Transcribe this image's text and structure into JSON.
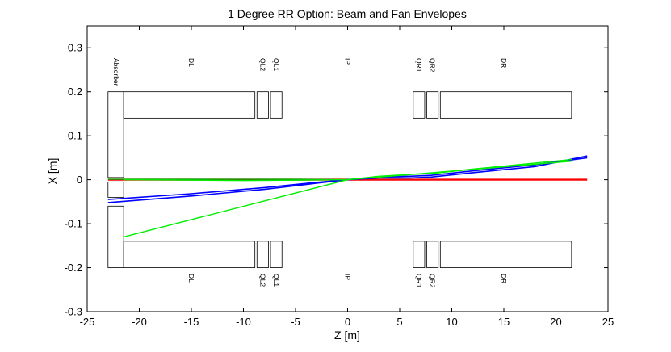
{
  "chart_data": {
    "type": "line",
    "title": "1 Degree RR Option: Beam and Fan Envelopes",
    "xlabel": "Z [m]",
    "ylabel": "X [m]",
    "xlim": [
      -25,
      25
    ],
    "ylim": [
      -0.3,
      0.35
    ],
    "xticks": [
      -25,
      -20,
      -15,
      -10,
      -5,
      0,
      5,
      10,
      15,
      20,
      25
    ],
    "yticks": [
      -0.3,
      -0.2,
      -0.1,
      0,
      0.1,
      0.2,
      0.3
    ],
    "xtick_labels": [
      "-25",
      "-20",
      "-15",
      "-10",
      "-5",
      "0",
      "5",
      "10",
      "15",
      "20",
      "25"
    ],
    "ytick_labels": [
      "-0.3",
      "-0.2",
      "-0.1",
      "0",
      "0.1",
      "0.2",
      "0.3"
    ],
    "grid": false,
    "elements": [
      {
        "label": "Absorber",
        "rects": [
          [
            -23,
            -21.5,
            0.005,
            0.2
          ],
          [
            -23,
            -21.5,
            -0.2,
            -0.06
          ],
          [
            -23,
            -21.5,
            -0.04,
            -0.005
          ]
        ],
        "label_z": -22.2,
        "top_only": true
      },
      {
        "label": "DL",
        "rects": [
          [
            -21.5,
            -8.9,
            0.14,
            0.2
          ],
          [
            -21.5,
            -8.9,
            -0.2,
            -0.14
          ]
        ],
        "label_z": -15
      },
      {
        "label": "QL2",
        "rects": [
          [
            -8.7,
            -7.6,
            0.14,
            0.2
          ],
          [
            -8.7,
            -7.6,
            -0.2,
            -0.14
          ]
        ],
        "label_z": -8.15
      },
      {
        "label": "QL1",
        "rects": [
          [
            -7.4,
            -6.3,
            0.14,
            0.2
          ],
          [
            -7.4,
            -6.3,
            -0.2,
            -0.14
          ]
        ],
        "label_z": -6.85
      },
      {
        "label": "IP",
        "rects": [],
        "label_z": 0
      },
      {
        "label": "QR1",
        "rects": [
          [
            6.3,
            7.4,
            0.14,
            0.2
          ],
          [
            6.3,
            7.4,
            -0.2,
            -0.14
          ]
        ],
        "label_z": 6.85
      },
      {
        "label": "QR2",
        "rects": [
          [
            7.6,
            8.7,
            0.14,
            0.2
          ],
          [
            7.6,
            8.7,
            -0.2,
            -0.14
          ]
        ],
        "label_z": 8.15
      },
      {
        "label": "DR",
        "rects": [
          [
            8.9,
            21.5,
            0.14,
            0.2
          ],
          [
            8.9,
            21.5,
            -0.2,
            -0.14
          ]
        ],
        "label_z": 15
      }
    ],
    "series": [
      {
        "color": "#ff0000",
        "width": 2.4,
        "x": [
          -23,
          0,
          23
        ],
        "y": [
          0,
          0,
          0
        ]
      },
      {
        "color": "#00aa00",
        "width": 1.4,
        "x": [
          -23,
          -10,
          -5,
          0
        ],
        "y": [
          0.001,
          0.001,
          0.001,
          0.0
        ]
      },
      {
        "color": "#0000ff",
        "width": 1.6,
        "x": [
          -23,
          -15,
          -8,
          -3,
          0,
          3,
          6,
          8,
          12,
          18,
          23
        ],
        "y": [
          -0.045,
          -0.032,
          -0.018,
          -0.006,
          0,
          0.006,
          0.008,
          0.01,
          0.02,
          0.034,
          0.05
        ]
      },
      {
        "color": "#0000ff",
        "width": 1.6,
        "x": [
          -23,
          -15,
          -8,
          -3,
          0,
          3,
          6,
          8,
          12,
          18,
          23
        ],
        "y": [
          -0.052,
          -0.037,
          -0.022,
          -0.008,
          0,
          0.004,
          0.004,
          0.006,
          0.016,
          0.03,
          0.054
        ]
      },
      {
        "color": "#00ee00",
        "width": 1.4,
        "x": [
          -21.5,
          0,
          21.5
        ],
        "y": [
          -0.13,
          0,
          0.042
        ]
      },
      {
        "color": "#00ee00",
        "width": 1.4,
        "x": [
          0,
          3,
          6,
          8,
          12,
          18,
          21.5
        ],
        "y": [
          0,
          0.008,
          0.012,
          0.014,
          0.024,
          0.038,
          0.046
        ]
      },
      {
        "color": "#00ee00",
        "width": 1.4,
        "x": [
          -21.5,
          -10,
          -5,
          0
        ],
        "y": [
          0.0,
          -0.002,
          -0.001,
          0
        ]
      }
    ]
  }
}
